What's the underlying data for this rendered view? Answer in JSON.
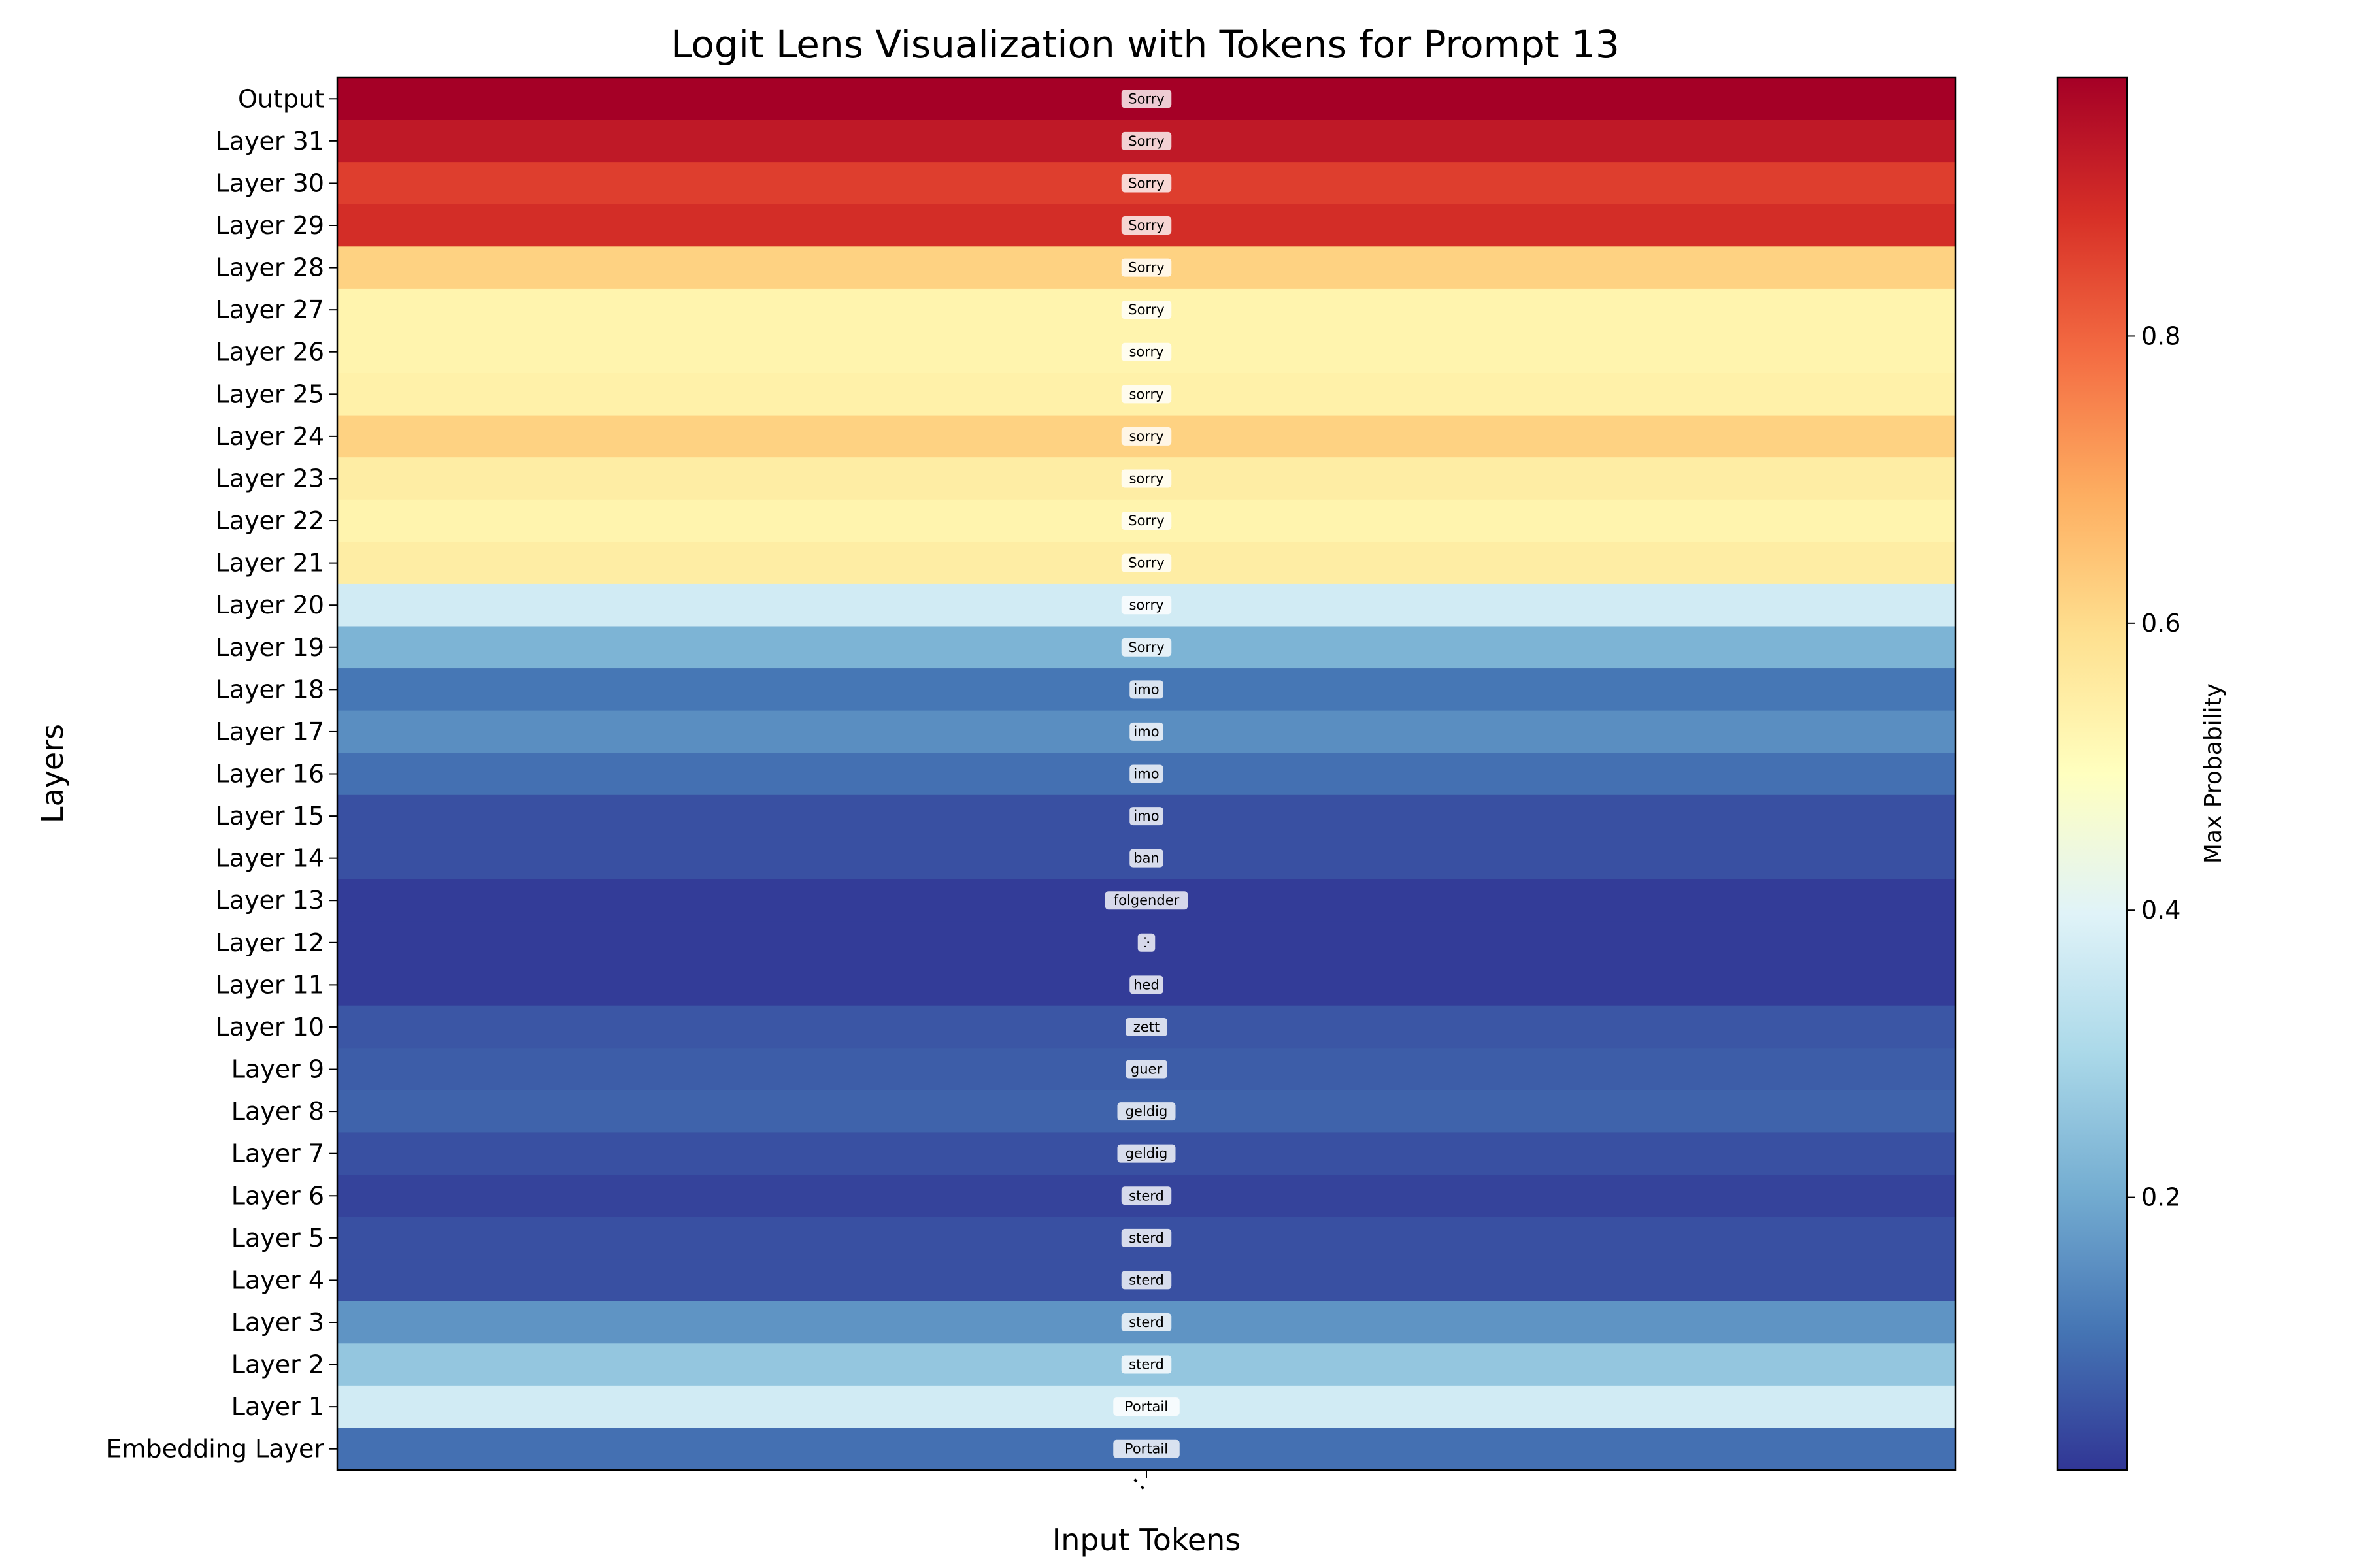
{
  "chart_data": {
    "type": "heatmap",
    "title": "Logit Lens Visualization with Tokens for Prompt 13",
    "xlabel": "Input Tokens",
    "ylabel": "Layers",
    "x_tick_labels": [
      ":"
    ],
    "colorbar": {
      "label": "Max Probability",
      "range": [
        0.01,
        0.98
      ],
      "ticks": [
        0.2,
        0.4,
        0.6,
        0.8
      ],
      "tick_labels": [
        "0.2",
        "0.4",
        "0.6",
        "0.8"
      ],
      "colormap": "RdYlBu_r"
    },
    "rows": [
      {
        "layer": "Output",
        "token": "Sorry",
        "value": 0.98
      },
      {
        "layer": "Layer 31",
        "token": "Sorry",
        "value": 0.93
      },
      {
        "layer": "Layer 30",
        "token": "Sorry",
        "value": 0.86
      },
      {
        "layer": "Layer 29",
        "token": "Sorry",
        "value": 0.89
      },
      {
        "layer": "Layer 28",
        "token": "Sorry",
        "value": 0.62
      },
      {
        "layer": "Layer 27",
        "token": "Sorry",
        "value": 0.53
      },
      {
        "layer": "Layer 26",
        "token": "sorry",
        "value": 0.53
      },
      {
        "layer": "Layer 25",
        "token": "sorry",
        "value": 0.54
      },
      {
        "layer": "Layer 24",
        "token": "sorry",
        "value": 0.62
      },
      {
        "layer": "Layer 23",
        "token": "sorry",
        "value": 0.55
      },
      {
        "layer": "Layer 22",
        "token": "Sorry",
        "value": 0.53
      },
      {
        "layer": "Layer 21",
        "token": "Sorry",
        "value": 0.55
      },
      {
        "layer": "Layer 20",
        "token": "sorry",
        "value": 0.37
      },
      {
        "layer": "Layer 19",
        "token": "Sorry",
        "value": 0.22
      },
      {
        "layer": "Layer 18",
        "token": "imo",
        "value": 0.11
      },
      {
        "layer": "Layer 17",
        "token": "imo",
        "value": 0.15
      },
      {
        "layer": "Layer 16",
        "token": "imo",
        "value": 0.1
      },
      {
        "layer": "Layer 15",
        "token": "imo",
        "value": 0.05
      },
      {
        "layer": "Layer 14",
        "token": "ban",
        "value": 0.05
      },
      {
        "layer": "Layer 13",
        "token": "folgender",
        "value": 0.02
      },
      {
        "layer": "Layer 12",
        "token": "ⴾ",
        "value": 0.02
      },
      {
        "layer": "Layer 11",
        "token": "hed",
        "value": 0.02
      },
      {
        "layer": "Layer 10",
        "token": "zett",
        "value": 0.06
      },
      {
        "layer": "Layer 9",
        "token": "guer",
        "value": 0.07
      },
      {
        "layer": "Layer 8",
        "token": "geldig",
        "value": 0.08
      },
      {
        "layer": "Layer 7",
        "token": "geldig",
        "value": 0.05
      },
      {
        "layer": "Layer 6",
        "token": "sterd",
        "value": 0.03
      },
      {
        "layer": "Layer 5",
        "token": "sterd",
        "value": 0.05
      },
      {
        "layer": "Layer 4",
        "token": "sterd",
        "value": 0.05
      },
      {
        "layer": "Layer 3",
        "token": "sterd",
        "value": 0.16
      },
      {
        "layer": "Layer 2",
        "token": "sterd",
        "value": 0.26
      },
      {
        "layer": "Layer 1",
        "token": "Portail",
        "value": 0.37
      },
      {
        "layer": "Embedding Layer",
        "token": "Portail",
        "value": 0.1
      }
    ]
  }
}
